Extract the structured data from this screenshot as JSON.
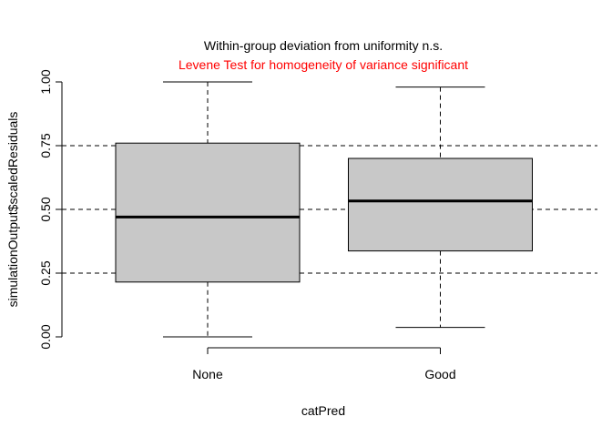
{
  "chart_data": {
    "type": "boxplot",
    "title": "Within-group deviation from uniformity n.s.",
    "subtitle": "Levene Test for homogeneity of variance significant",
    "xlabel": "catPred",
    "ylabel": "simulationOutput$scaledResiduals",
    "ylim": [
      0,
      1
    ],
    "yticks": [
      0,
      0.25,
      0.5,
      0.75,
      1
    ],
    "ytick_labels": [
      "0.00",
      "0.25",
      "0.50",
      "0.75",
      "1.00"
    ],
    "reference_lines": [
      0.25,
      0.5,
      0.75
    ],
    "categories": [
      "None",
      "Good"
    ],
    "boxes": [
      {
        "name": "None",
        "min": 0.0,
        "q1": 0.215,
        "median": 0.47,
        "q3": 0.76,
        "max": 1.0
      },
      {
        "name": "Good",
        "min": 0.037,
        "q1": 0.337,
        "median": 0.533,
        "q3": 0.7,
        "max": 0.98
      }
    ],
    "colors": {
      "box_fill": "#C8C8C8",
      "subtitle": "#FF0000",
      "text": "#000000"
    }
  }
}
